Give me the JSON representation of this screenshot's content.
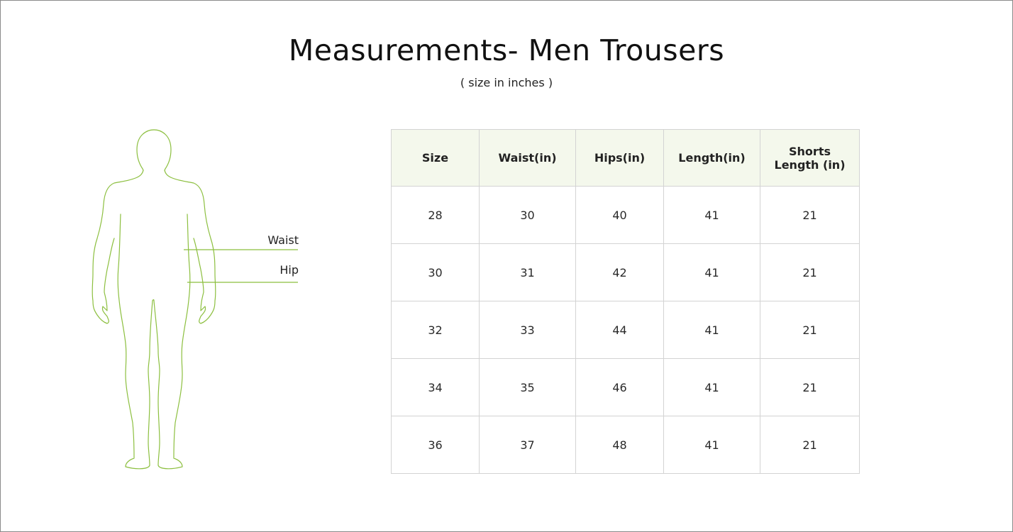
{
  "title": "Measurements- Men Trousers",
  "subtitle": "( size in inches )",
  "figure": {
    "labels": {
      "waist": "Waist",
      "hip": "Hip"
    },
    "outline_color": "#8cbf3f"
  },
  "table": {
    "headers": [
      "Size",
      "Waist(in)",
      "Hips(in)",
      "Length(in)",
      "Shorts Length (in)"
    ],
    "rows": [
      [
        "28",
        "30",
        "40",
        "41",
        "21"
      ],
      [
        "30",
        "31",
        "42",
        "41",
        "21"
      ],
      [
        "32",
        "33",
        "44",
        "41",
        "21"
      ],
      [
        "34",
        "35",
        "46",
        "41",
        "21"
      ],
      [
        "36",
        "37",
        "48",
        "41",
        "21"
      ]
    ],
    "header_bg": "#f4f8ec",
    "border_color": "#d3d3d3"
  }
}
